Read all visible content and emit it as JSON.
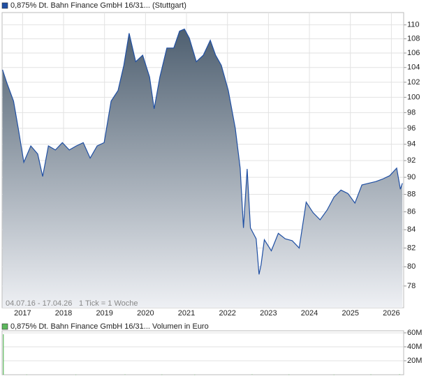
{
  "chart_data": [
    {
      "type": "area",
      "log_scale": true,
      "grid": true,
      "annotations": [
        "04.07.16 - 17.04.26",
        "1 Tick = 1 Woche"
      ],
      "x": [
        2016.51,
        2016.61,
        2016.78,
        2016.9,
        2017.03,
        2017.2,
        2017.37,
        2017.49,
        2017.63,
        2017.8,
        2017.97,
        2018.14,
        2018.31,
        2018.48,
        2018.65,
        2018.82,
        2018.99,
        2019.16,
        2019.33,
        2019.47,
        2019.6,
        2019.76,
        2019.93,
        2020.1,
        2020.21,
        2020.35,
        2020.52,
        2020.69,
        2020.83,
        2020.95,
        2021.07,
        2021.24,
        2021.41,
        2021.58,
        2021.71,
        2021.85,
        2022.02,
        2022.19,
        2022.31,
        2022.39,
        2022.48,
        2022.56,
        2022.7,
        2022.77,
        2022.82,
        2022.9,
        2023.07,
        2023.24,
        2023.41,
        2023.58,
        2023.75,
        2023.92,
        2024.09,
        2024.26,
        2024.43,
        2024.6,
        2024.77,
        2024.94,
        2025.11,
        2025.28,
        2025.45,
        2025.62,
        2025.79,
        2025.96,
        2026.13,
        2026.22,
        2026.27
      ],
      "series": [
        {
          "name": "0,875% Dt. Bahn Finance GmbH 16/31... (Stuttgart)",
          "color": "#1f4fa3",
          "fill_top": "#4e5f70",
          "fill_bottom": "#eef0f4",
          "values": [
            103.7,
            102.0,
            99.5,
            95.8,
            91.8,
            93.8,
            92.8,
            90.1,
            93.8,
            93.3,
            94.2,
            93.3,
            93.8,
            94.2,
            92.3,
            93.8,
            94.2,
            99.5,
            100.9,
            104.3,
            108.8,
            104.8,
            105.7,
            102.7,
            98.5,
            102.7,
            106.7,
            106.7,
            109.1,
            109.4,
            108.1,
            104.8,
            105.7,
            107.8,
            105.7,
            104.3,
            100.9,
            96.0,
            91.1,
            84.2,
            91.0,
            84.2,
            83.0,
            79.2,
            80.2,
            82.9,
            81.7,
            83.6,
            83.0,
            82.8,
            82.0,
            87.1,
            85.9,
            85.1,
            86.2,
            87.7,
            88.5,
            88.1,
            87.0,
            89.1,
            89.3,
            89.5,
            89.8,
            90.2,
            91.1,
            88.6,
            89.3
          ]
        }
      ],
      "xlim": [
        2016.5,
        2026.3
      ],
      "xticks": [
        2017,
        2018,
        2019,
        2020,
        2021,
        2022,
        2023,
        2024,
        2025,
        2026
      ],
      "ylim": [
        75.8,
        111.8
      ],
      "yticks": [
        78,
        80,
        82,
        84,
        86,
        88,
        90,
        92,
        94,
        96,
        98,
        100,
        102,
        104,
        106,
        108,
        110
      ]
    },
    {
      "type": "bar",
      "grid": true,
      "x": [
        2016.53,
        2017.1,
        2018.3,
        2019.5,
        2020.4,
        2021.2,
        2022.6,
        2023.5,
        2024.6,
        2025.5,
        2026.2
      ],
      "series": [
        {
          "name": "0,875% Dt. Bahn Finance GmbH 16/31... Volumen in Euro",
          "color": "#5cb85c",
          "values": [
            58000000,
            300000,
            200000,
            400000,
            300000,
            200000,
            500000,
            300000,
            200000,
            400000,
            600000
          ]
        }
      ],
      "xlim": [
        2016.5,
        2026.3
      ],
      "ylim": [
        0,
        63000000
      ],
      "yticks": [
        {
          "value": 20000000,
          "label": "20M"
        },
        {
          "value": 40000000,
          "label": "40M"
        },
        {
          "value": 60000000,
          "label": "60M"
        }
      ]
    }
  ]
}
